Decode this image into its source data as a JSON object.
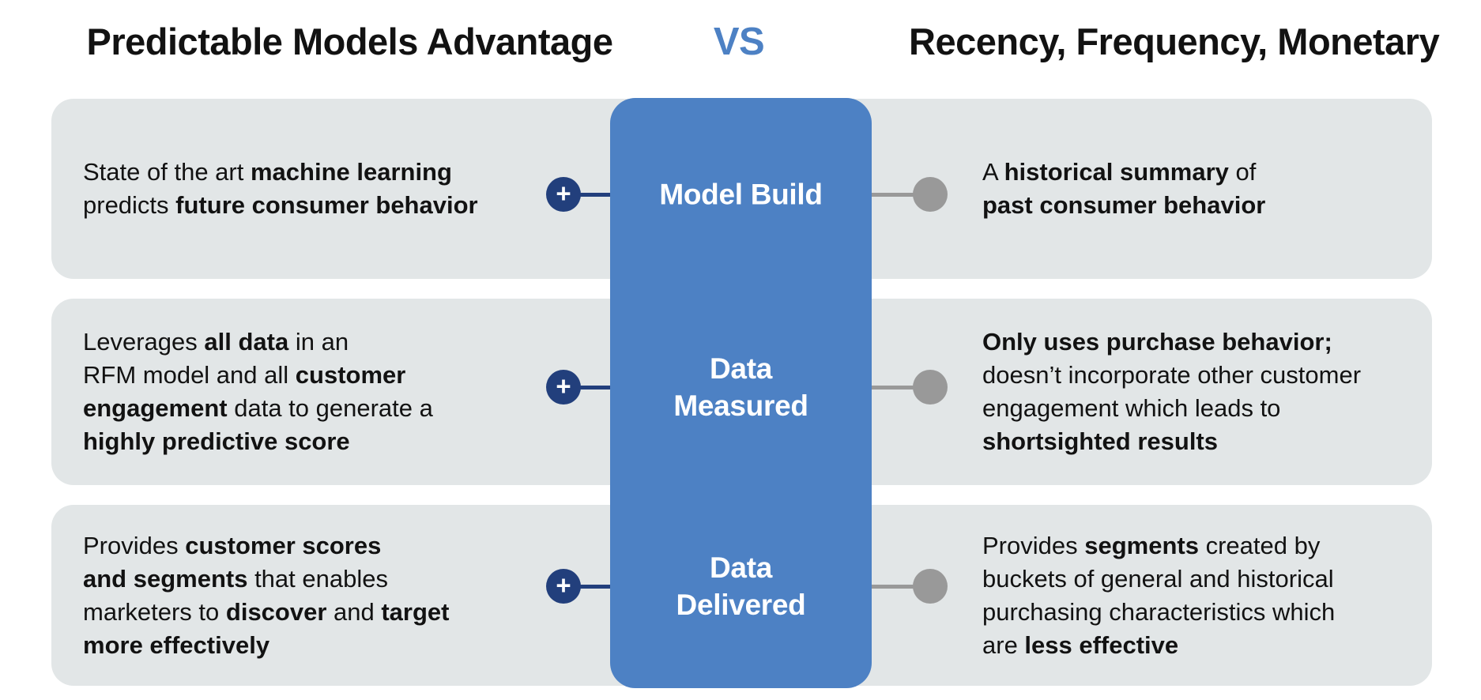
{
  "header": {
    "left_title": "Predictable Models Advantage",
    "vs_label": "VS",
    "right_title": "Recency, Frequency, Monetary"
  },
  "icons": {
    "plus_glyph": "+"
  },
  "colors": {
    "accent_blue": "#4D81C4",
    "navy_node": "#223F7C",
    "connector_gray": "#999999",
    "card_gray": "#E2E6E7",
    "text_dark": "#121212",
    "label_white": "#FFFFFF",
    "background": "#FFFFFF"
  },
  "rows": [
    {
      "center_label_lines": [
        "Model Build"
      ],
      "left_lines": [
        [
          {
            "t": "State of the art ",
            "b": false
          },
          {
            "t": "machine learning",
            "b": true
          }
        ],
        [
          {
            "t": "predicts ",
            "b": false
          },
          {
            "t": "future consumer behavior",
            "b": true
          }
        ]
      ],
      "right_lines": [
        [
          {
            "t": "A ",
            "b": false
          },
          {
            "t": "historical summary",
            "b": true
          },
          {
            "t": " of",
            "b": false
          }
        ],
        [
          {
            "t": "past consumer behavior",
            "b": true
          }
        ]
      ]
    },
    {
      "center_label_lines": [
        "Data",
        "Measured"
      ],
      "left_lines": [
        [
          {
            "t": "Leverages ",
            "b": false
          },
          {
            "t": "all data",
            "b": true
          },
          {
            "t": " in an",
            "b": false
          }
        ],
        [
          {
            "t": "RFM model and all ",
            "b": false
          },
          {
            "t": "customer",
            "b": true
          }
        ],
        [
          {
            "t": "engagement",
            "b": true
          },
          {
            "t": " data to generate a",
            "b": false
          }
        ],
        [
          {
            "t": "highly predictive score",
            "b": true
          }
        ]
      ],
      "right_lines": [
        [
          {
            "t": "Only uses purchase behavior;",
            "b": true
          }
        ],
        [
          {
            "t": "doesn’t incorporate other customer",
            "b": false
          }
        ],
        [
          {
            "t": "engagement which leads to",
            "b": false
          }
        ],
        [
          {
            "t": "shortsighted results",
            "b": true
          }
        ]
      ]
    },
    {
      "center_label_lines": [
        "Data",
        "Delivered"
      ],
      "left_lines": [
        [
          {
            "t": "Provides ",
            "b": false
          },
          {
            "t": "customer scores",
            "b": true
          }
        ],
        [
          {
            "t": "and segments",
            "b": true
          },
          {
            "t": " that enables",
            "b": false
          }
        ],
        [
          {
            "t": "marketers to ",
            "b": false
          },
          {
            "t": "discover",
            "b": true
          },
          {
            "t": " and ",
            "b": false
          },
          {
            "t": "target",
            "b": true
          }
        ],
        [
          {
            "t": "more effectively",
            "b": true
          }
        ]
      ],
      "right_lines": [
        [
          {
            "t": "Provides ",
            "b": false
          },
          {
            "t": "segments",
            "b": true
          },
          {
            "t": " created by",
            "b": false
          }
        ],
        [
          {
            "t": "buckets of general and historical",
            "b": false
          }
        ],
        [
          {
            "t": "purchasing characteristics which",
            "b": false
          }
        ],
        [
          {
            "t": "are ",
            "b": false
          },
          {
            "t": "less effective",
            "b": true
          }
        ]
      ]
    }
  ]
}
